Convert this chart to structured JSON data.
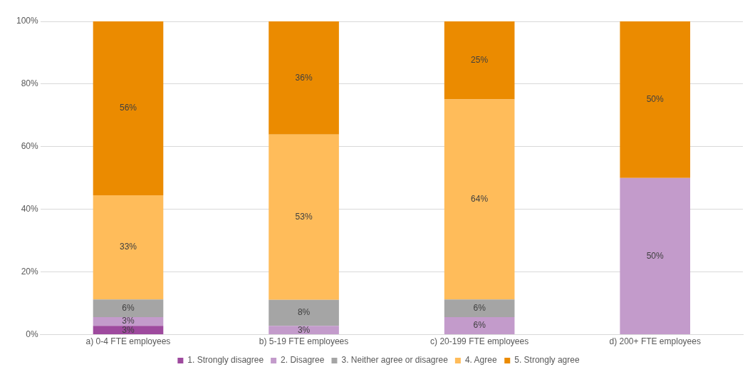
{
  "chart_data": {
    "type": "bar",
    "stacked": true,
    "categories": [
      "a) 0-4 FTE employees",
      "b) 5-19 FTE employees",
      "c) 20-199 FTE employees",
      "d) 200+ FTE employees"
    ],
    "series": [
      {
        "name": "1. Strongly disagree",
        "color": "#9e4a9e",
        "values": [
          2.8,
          0,
          0,
          0
        ],
        "value_labels": [
          "3%",
          null,
          null,
          null
        ]
      },
      {
        "name": "2. Disagree",
        "color": "#c39bcb",
        "values": [
          2.8,
          2.8,
          5.6,
          50
        ],
        "value_labels": [
          "3%",
          "3%",
          "6%",
          "50%"
        ]
      },
      {
        "name": "3. Neither agree or disagree",
        "color": "#a5a5a5",
        "values": [
          5.6,
          8.3,
          5.6,
          0
        ],
        "value_labels": [
          "6%",
          "8%",
          "6%",
          null
        ]
      },
      {
        "name": "4. Agree",
        "color": "#ffbc5a",
        "values": [
          33.3,
          52.8,
          63.9,
          0
        ],
        "value_labels": [
          "33%",
          "53%",
          "64%",
          null
        ]
      },
      {
        "name": "5. Strongly agree",
        "color": "#eb8b00",
        "values": [
          55.6,
          36.1,
          25,
          50
        ],
        "value_labels": [
          "56%",
          "36%",
          "25%",
          "50%"
        ]
      }
    ],
    "ylim": [
      0,
      100
    ],
    "yticks": [
      {
        "value": 0,
        "label": "0%"
      },
      {
        "value": 20,
        "label": "20%"
      },
      {
        "value": 40,
        "label": "40%"
      },
      {
        "value": 60,
        "label": "60%"
      },
      {
        "value": 80,
        "label": "80%"
      },
      {
        "value": 100,
        "label": "100%"
      }
    ],
    "grid": "y",
    "legend": "bottom"
  }
}
